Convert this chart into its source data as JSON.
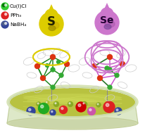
{
  "legend_items": [
    {
      "label": "Cu(I)Cl",
      "color": "#33cc33",
      "dark_color": "#006600"
    },
    {
      "label": "PPh₃",
      "color": "#dd2222"
    },
    {
      "label": "NaBH₄",
      "color": "#334499",
      "dark_color": "#556688"
    }
  ],
  "s_label": "S",
  "se_label": "Se",
  "s_color": "#ddcc00",
  "s_color2": "#ccaa00",
  "se_color": "#cc77cc",
  "se_color2": "#aa55aa",
  "stem_color": "#888888",
  "background_color": "#ffffff",
  "dish_fill": "#c5cc55",
  "dish_rim": "#dde8aa",
  "dish_wall": "#e0e8c0",
  "green_stick": "#228822",
  "pink_stick": "#cc55cc",
  "red_atom": "#dd3311",
  "green_atom": "#33aa33",
  "ring_color": "#dddddd",
  "figsize": [
    2.07,
    1.89
  ],
  "dpi": 100
}
